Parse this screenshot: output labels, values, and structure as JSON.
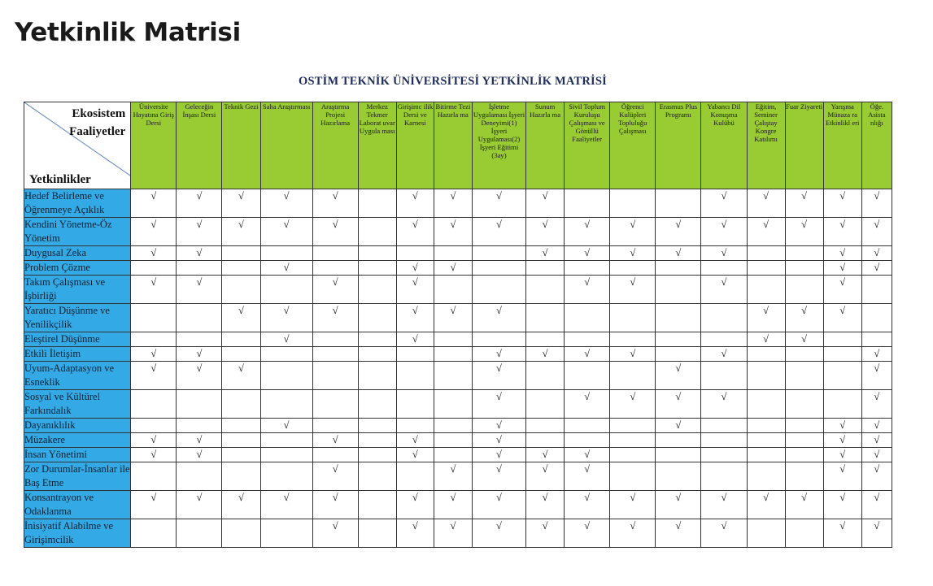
{
  "page_title": "Yetkinlik Matrisi",
  "document": {
    "title": "OSTİM TEKNİK ÜNİVERSİTESİ YETKİNLİK MATRİSİ",
    "corner_top_line1": "Ekosistem",
    "corner_top_line2": "Faaliyetler",
    "corner_bottom": "Yetkinlikler",
    "check_mark": "√",
    "columns": [
      {
        "label": "Üniversite Hayatına Giriş Dersi"
      },
      {
        "label": "Geleceğin İnşası Dersi"
      },
      {
        "label": "Teknik Gezi"
      },
      {
        "label": "Saha Araştırması"
      },
      {
        "label": "Araştırma Projesi Hazırlama"
      },
      {
        "label": "Merkez Tekmer Laborat uvar Uygula ması"
      },
      {
        "label": "Girişimc ilik Dersi ve Karnesi"
      },
      {
        "label": "Bitirme Tezi Hazırla ma"
      },
      {
        "label": "İşletme Uygulaması İşyeri Deneyimi(1) İşyeri Uygulaması(2) İşyeri Eğitimi (3ay)"
      },
      {
        "label": "Sunum Hazırla ma"
      },
      {
        "label": "Sivil Toplum Kuruluşu Çalışması ve Gönüllü Faaliyetler"
      },
      {
        "label": "Öğrenci Kulüpleri Topluluğu Çalışması"
      },
      {
        "label": "Erasmus Plus Programı"
      },
      {
        "label": "Yabancı Dil Konuşma Kulübü"
      },
      {
        "label": "Eğitim, Seminer Çalıştay Kongre Katılımı"
      },
      {
        "label": "Fuar Ziyareti"
      },
      {
        "label": "Yarışma Münaza ra Etkinlikl eri"
      },
      {
        "label": "Öğe. Asista nlığı"
      }
    ],
    "rows": [
      {
        "label": "Hedef Belirleme ve Öğrenmeye Açıklık",
        "marks": [
          1,
          1,
          1,
          1,
          1,
          0,
          1,
          1,
          1,
          1,
          0,
          0,
          0,
          1,
          1,
          1,
          1,
          1
        ]
      },
      {
        "label": "Kendini Yönetme-Öz Yönetim",
        "marks": [
          1,
          1,
          1,
          1,
          1,
          0,
          1,
          1,
          1,
          1,
          1,
          1,
          1,
          1,
          1,
          1,
          1,
          1
        ]
      },
      {
        "label": "Duygusal Zeka",
        "marks": [
          1,
          1,
          0,
          0,
          0,
          0,
          0,
          0,
          0,
          1,
          1,
          1,
          1,
          1,
          0,
          0,
          1,
          1
        ]
      },
      {
        "label": "Problem Çözme",
        "marks": [
          0,
          0,
          0,
          1,
          0,
          0,
          1,
          1,
          0,
          0,
          0,
          0,
          0,
          0,
          0,
          0,
          1,
          1
        ]
      },
      {
        "label": "Takım Çalışması ve İşbirliği",
        "marks": [
          1,
          1,
          0,
          0,
          1,
          0,
          1,
          0,
          0,
          0,
          1,
          1,
          0,
          1,
          0,
          0,
          1,
          0
        ]
      },
      {
        "label": "Yaratıcı Düşünme ve Yenilikçilik",
        "marks": [
          0,
          0,
          1,
          1,
          1,
          0,
          1,
          1,
          1,
          0,
          0,
          0,
          0,
          0,
          1,
          1,
          1,
          0
        ]
      },
      {
        "label": "Eleştirel Düşünme",
        "marks": [
          0,
          0,
          0,
          1,
          0,
          0,
          1,
          0,
          0,
          0,
          0,
          0,
          0,
          0,
          1,
          1,
          0,
          0
        ]
      },
      {
        "label": "Etkili İletişim",
        "marks": [
          1,
          1,
          0,
          0,
          0,
          0,
          0,
          0,
          1,
          1,
          1,
          1,
          0,
          1,
          0,
          0,
          0,
          1
        ]
      },
      {
        "label": "Uyum-Adaptasyon ve Esneklik",
        "marks": [
          1,
          1,
          1,
          0,
          0,
          0,
          0,
          0,
          1,
          0,
          0,
          0,
          1,
          0,
          0,
          0,
          0,
          1
        ]
      },
      {
        "label": "Sosyal ve Kültürel Farkındalık",
        "marks": [
          0,
          0,
          0,
          0,
          0,
          0,
          0,
          0,
          1,
          0,
          1,
          1,
          1,
          1,
          0,
          0,
          0,
          1
        ]
      },
      {
        "label": "Dayanıklılık",
        "marks": [
          0,
          0,
          0,
          1,
          0,
          0,
          0,
          0,
          1,
          0,
          0,
          0,
          1,
          0,
          0,
          0,
          1,
          1
        ]
      },
      {
        "label": "Müzakere",
        "marks": [
          1,
          1,
          0,
          0,
          1,
          0,
          1,
          0,
          1,
          0,
          0,
          0,
          0,
          0,
          0,
          0,
          1,
          1
        ]
      },
      {
        "label": "İnsan Yönetimi",
        "marks": [
          1,
          1,
          0,
          0,
          0,
          0,
          1,
          0,
          1,
          1,
          1,
          0,
          0,
          0,
          0,
          0,
          1,
          1
        ]
      },
      {
        "label": "Zor Durumlar-İnsanlar ile Baş Etme",
        "marks": [
          0,
          0,
          0,
          0,
          1,
          0,
          0,
          1,
          1,
          1,
          1,
          0,
          0,
          0,
          0,
          0,
          1,
          1
        ]
      },
      {
        "label": "Konsantrayon ve Odaklanma",
        "marks": [
          1,
          1,
          1,
          1,
          1,
          0,
          1,
          1,
          1,
          1,
          1,
          1,
          1,
          1,
          1,
          1,
          1,
          1
        ]
      },
      {
        "label": "İnisiyatif Alabilme ve Girişimcilik",
        "marks": [
          0,
          0,
          0,
          0,
          1,
          0,
          1,
          1,
          1,
          1,
          1,
          1,
          1,
          1,
          0,
          0,
          1,
          1
        ]
      }
    ]
  },
  "colors": {
    "header_green": "#99cc33",
    "row_blue": "#33aae6",
    "doc_title": "#1f2d5a"
  }
}
